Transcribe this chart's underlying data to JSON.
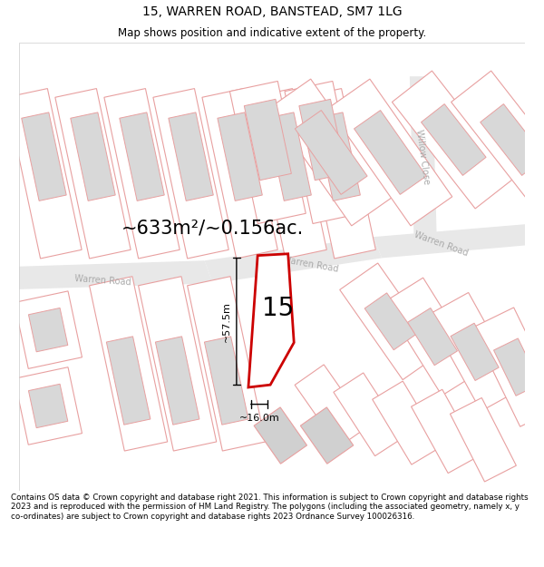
{
  "title": "15, WARREN ROAD, BANSTEAD, SM7 1LG",
  "subtitle": "Map shows position and indicative extent of the property.",
  "footer": "Contains OS data © Crown copyright and database right 2021. This information is subject to Crown copyright and database rights 2023 and is reproduced with the permission of HM Land Registry. The polygons (including the associated geometry, namely x, y co-ordinates) are subject to Crown copyright and database rights 2023 Ordnance Survey 100026316.",
  "area_label": "~633m²/~0.156ac.",
  "width_label": "~16.0m",
  "height_label": "~57.5m",
  "plot_number": "15",
  "map_bg": "#ffffff",
  "parcel_edge": "#e8a0a0",
  "parcel_fill": "#ffffff",
  "building_fill": "#d8d8d8",
  "building_edge": "#e8a0a0",
  "road_fill": "#e8e8e8",
  "road_label_color": "#aaaaaa",
  "highlight_color": "#cc0000",
  "annotation_color": "#000000",
  "title_fontsize": 10,
  "subtitle_fontsize": 8.5,
  "footer_fontsize": 6.3,
  "area_fontsize": 15,
  "number_fontsize": 20,
  "measure_fontsize": 8,
  "road_label_fontsize": 7
}
